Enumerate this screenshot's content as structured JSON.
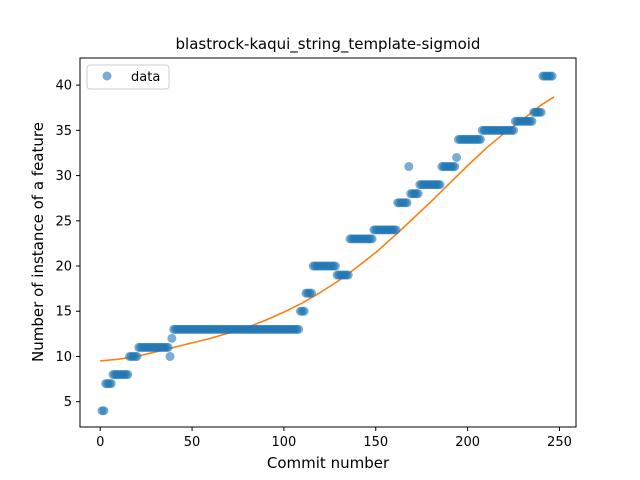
{
  "chart_data": {
    "type": "scatter",
    "title": "blastrock-kaqui_string_template-sigmoid",
    "xlabel": "Commit number",
    "ylabel": "Number of instance of a feature",
    "xlim": [
      -11,
      259
    ],
    "ylim": [
      2.2,
      43.0
    ],
    "xticks": [
      0,
      50,
      100,
      150,
      200,
      250
    ],
    "yticks": [
      5,
      10,
      15,
      20,
      25,
      30,
      35,
      40
    ],
    "legend": {
      "label": "data",
      "position": "top-left"
    },
    "colors": {
      "points": "#1f77b4",
      "fit": "#ff7f0e"
    },
    "series": [
      {
        "name": "data",
        "kind": "points",
        "runs": [
          {
            "from": 1,
            "to": 2,
            "y": 4
          },
          {
            "from": 3,
            "to": 6,
            "y": 7
          },
          {
            "from": 7,
            "to": 15,
            "y": 8
          },
          {
            "from": 16,
            "to": 20,
            "y": 10
          },
          {
            "from": 21,
            "to": 37,
            "y": 11
          },
          {
            "from": 38,
            "to": 38,
            "y": 10
          },
          {
            "from": 39,
            "to": 39,
            "y": 12
          },
          {
            "from": 40,
            "to": 108,
            "y": 13
          },
          {
            "from": 109,
            "to": 111,
            "y": 15
          },
          {
            "from": 112,
            "to": 115,
            "y": 17
          },
          {
            "from": 116,
            "to": 128,
            "y": 20
          },
          {
            "from": 129,
            "to": 135,
            "y": 19
          },
          {
            "from": 136,
            "to": 148,
            "y": 23
          },
          {
            "from": 149,
            "to": 161,
            "y": 24
          },
          {
            "from": 162,
            "to": 167,
            "y": 27
          },
          {
            "from": 168,
            "to": 168,
            "y": 31
          },
          {
            "from": 169,
            "to": 173,
            "y": 28
          },
          {
            "from": 174,
            "to": 185,
            "y": 29
          },
          {
            "from": 186,
            "to": 193,
            "y": 31
          },
          {
            "from": 194,
            "to": 194,
            "y": 32
          },
          {
            "from": 195,
            "to": 207,
            "y": 34
          },
          {
            "from": 208,
            "to": 225,
            "y": 35
          },
          {
            "from": 226,
            "to": 235,
            "y": 36
          },
          {
            "from": 236,
            "to": 240,
            "y": 37
          },
          {
            "from": 241,
            "to": 246,
            "y": 41
          }
        ]
      },
      {
        "name": "sigmoid fit",
        "kind": "line",
        "x": [
          0,
          10,
          20,
          30,
          40,
          50,
          60,
          70,
          80,
          90,
          100,
          110,
          120,
          130,
          140,
          150,
          160,
          170,
          180,
          190,
          200,
          210,
          220,
          230,
          240,
          247
        ],
        "y": [
          9.5,
          9.7,
          10.0,
          10.5,
          11.0,
          11.5,
          12.0,
          12.6,
          13.2,
          14.0,
          14.9,
          15.9,
          17.1,
          18.4,
          19.9,
          21.5,
          23.3,
          25.2,
          27.1,
          29.1,
          31.1,
          33.0,
          34.7,
          36.2,
          37.8,
          38.7
        ]
      }
    ]
  }
}
